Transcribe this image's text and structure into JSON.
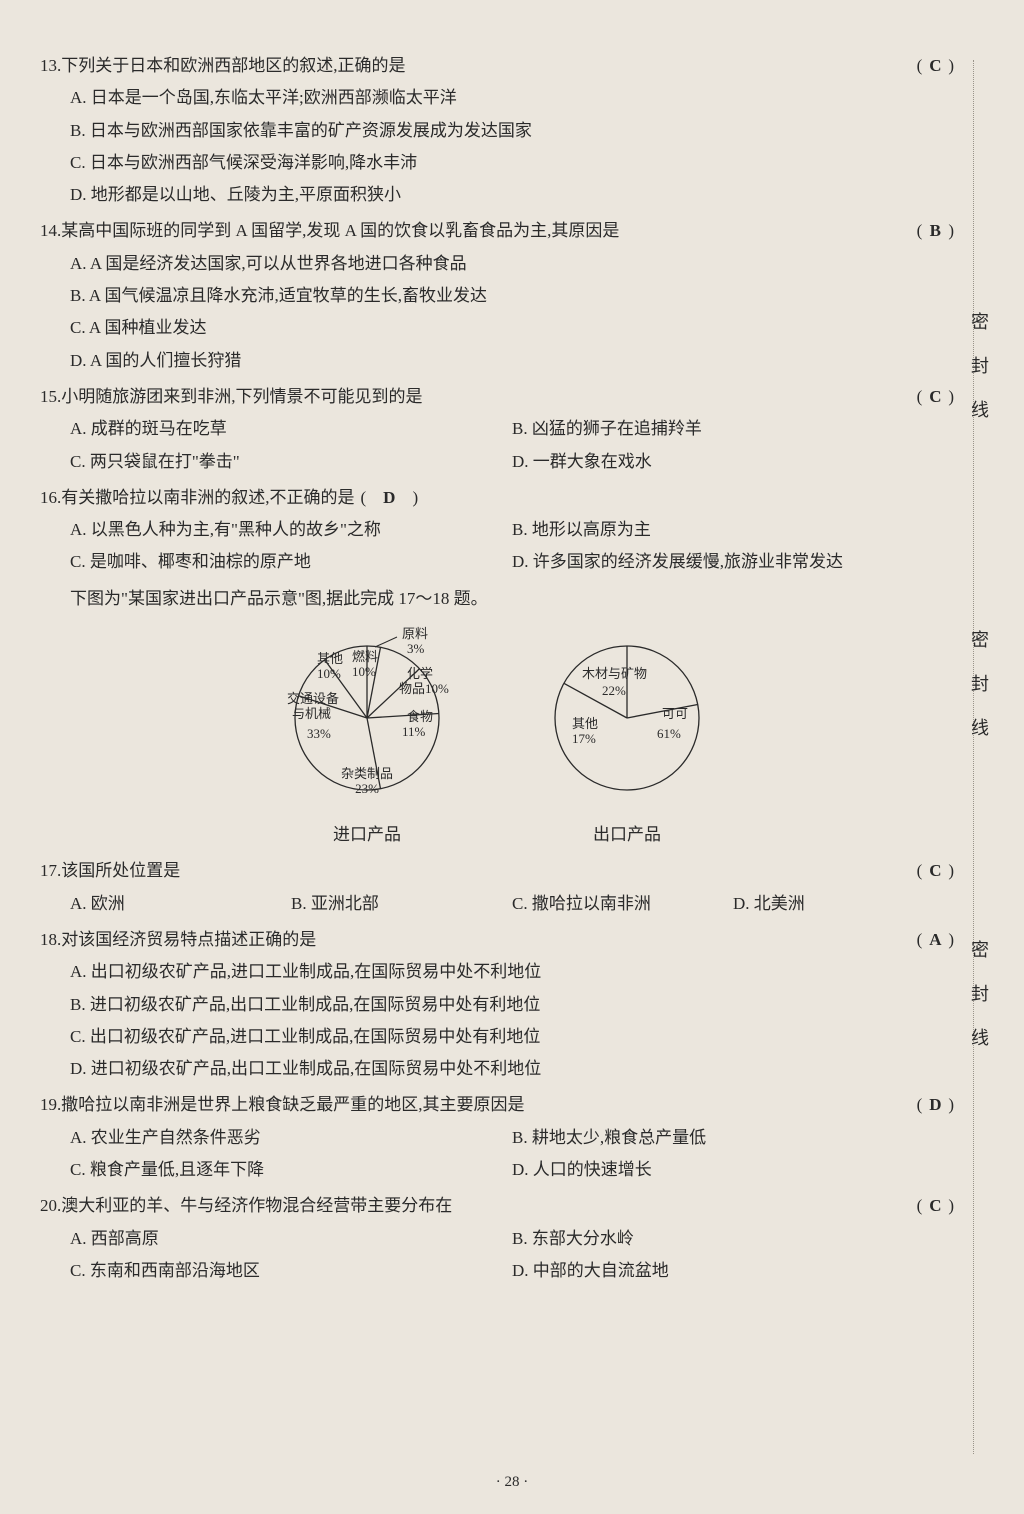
{
  "margin_label": "密封线",
  "page_number": "· 28 ·",
  "questions": [
    {
      "num": "13.",
      "text": "下列关于日本和欧洲西部地区的叙述,正确的是",
      "answer": "C",
      "opts": [
        "A. 日本是一个岛国,东临太平洋;欧洲西部濒临太平洋",
        "B. 日本与欧洲西部国家依靠丰富的矿产资源发展成为发达国家",
        "C. 日本与欧洲西部气候深受海洋影响,降水丰沛",
        "D. 地形都是以山地、丘陵为主,平原面积狭小"
      ],
      "layout": "one"
    },
    {
      "num": "14.",
      "text": "某高中国际班的同学到 A 国留学,发现 A 国的饮食以乳畜食品为主,其原因是",
      "answer": "B",
      "opts": [
        "A. A 国是经济发达国家,可以从世界各地进口各种食品",
        "B. A 国气候温凉且降水充沛,适宜牧草的生长,畜牧业发达",
        "C. A 国种植业发达",
        "D. A 国的人们擅长狩猎"
      ],
      "layout": "one"
    },
    {
      "num": "15.",
      "text": "小明随旅游团来到非洲,下列情景不可能见到的是",
      "answer": "C",
      "opts": [
        "A. 成群的斑马在吃草",
        "B. 凶猛的狮子在追捕羚羊",
        "C. 两只袋鼠在打\"拳击\"",
        "D. 一群大象在戏水"
      ],
      "layout": "two"
    },
    {
      "num": "16.",
      "text": "有关撒哈拉以南非洲的叙述,不正确的是",
      "answer": "D",
      "inline": true,
      "opts": [
        "A. 以黑色人种为主,有\"黑种人的故乡\"之称",
        "B. 地形以高原为主",
        "C. 是咖啡、椰枣和油棕的原产地",
        "D. 许多国家的经济发展缓慢,旅游业非常发达"
      ],
      "layout": "two"
    }
  ],
  "chart_intro": "下图为\"某国家进出口产品示意\"图,据此完成 17～18 题。",
  "chart1": {
    "title": "进口产品",
    "type": "pie",
    "stroke": "#2a2a2a",
    "fill": "#ebe6dd",
    "radius": 72,
    "slices": [
      {
        "label": "原料",
        "pct": "3%",
        "value": 3
      },
      {
        "label": "化学物品",
        "pct": "10%",
        "value": 10,
        "combine": true
      },
      {
        "label": "食物",
        "pct": "11%",
        "value": 11
      },
      {
        "label": "杂类制品",
        "pct": "23%",
        "value": 23
      },
      {
        "label": "交通设备与机械",
        "pct": "33%",
        "value": 33,
        "combine": true
      },
      {
        "label": "其他",
        "pct": "10%",
        "value": 10
      },
      {
        "label": "燃料",
        "pct": "10%",
        "value": 10
      }
    ]
  },
  "chart2": {
    "title": "出口产品",
    "type": "pie",
    "stroke": "#2a2a2a",
    "fill": "#ebe6dd",
    "radius": 72,
    "slices": [
      {
        "label": "木材与矿物",
        "pct": "22%",
        "value": 22
      },
      {
        "label": "可可",
        "pct": "61%",
        "value": 61
      },
      {
        "label": "其他",
        "pct": "17%",
        "value": 17
      }
    ]
  },
  "questions2": [
    {
      "num": "17.",
      "text": "该国所处位置是",
      "answer": "C",
      "opts": [
        "A. 欧洲",
        "B. 亚洲北部",
        "C. 撒哈拉以南非洲",
        "D. 北美洲"
      ],
      "layout": "four"
    },
    {
      "num": "18.",
      "text": "对该国经济贸易特点描述正确的是",
      "answer": "A",
      "opts": [
        "A. 出口初级农矿产品,进口工业制成品,在国际贸易中处不利地位",
        "B. 进口初级农矿产品,出口工业制成品,在国际贸易中处有利地位",
        "C. 出口初级农矿产品,进口工业制成品,在国际贸易中处有利地位",
        "D. 进口初级农矿产品,出口工业制成品,在国际贸易中处不利地位"
      ],
      "layout": "one"
    },
    {
      "num": "19.",
      "text": "撒哈拉以南非洲是世界上粮食缺乏最严重的地区,其主要原因是",
      "answer": "D",
      "opts": [
        "A. 农业生产自然条件恶劣",
        "B. 耕地太少,粮食总产量低",
        "C. 粮食产量低,且逐年下降",
        "D. 人口的快速增长"
      ],
      "layout": "two"
    },
    {
      "num": "20.",
      "text": "澳大利亚的羊、牛与经济作物混合经营带主要分布在",
      "answer": "C",
      "opts": [
        "A. 西部高原",
        "B. 东部大分水岭",
        "C. 东南和西南部沿海地区",
        "D. 中部的大自流盆地"
      ],
      "layout": "two"
    }
  ]
}
